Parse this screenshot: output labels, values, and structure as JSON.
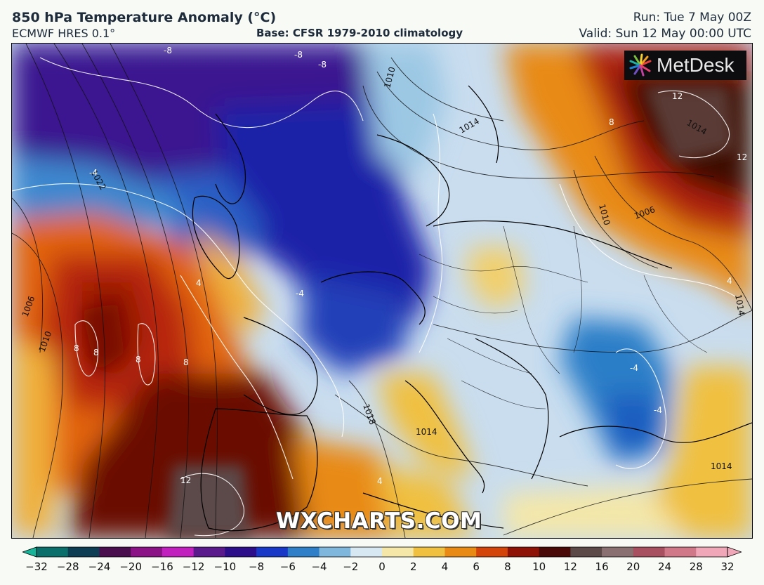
{
  "header": {
    "title": "850 hPa Temperature Anomaly (°C)",
    "model": "ECMWF HRES 0.1°",
    "base": "Base: CFSR 1979-2010 climatology",
    "run": "Run: Tue 7 May 00Z",
    "valid": "Valid: Sun 12 May 00:00 UTC"
  },
  "branding": {
    "logo": "MetDesk",
    "watermark": "WXCHARTS.COM"
  },
  "colorbar": {
    "ticks": [
      "−32",
      "−28",
      "−24",
      "−20",
      "−16",
      "−12",
      "−10",
      "−8",
      "−6",
      "−4",
      "−2",
      "0",
      "2",
      "4",
      "6",
      "8",
      "10",
      "12",
      "16",
      "20",
      "24",
      "28",
      "32"
    ],
    "colors": [
      "#16b59a",
      "#0a6f6a",
      "#0d3d52",
      "#4a0d4e",
      "#8a1286",
      "#c21fbf",
      "#5a1a8c",
      "#2c0e8a",
      "#1838c8",
      "#2f7ec8",
      "#7fb6dc",
      "#d8e8f2",
      "#f4e7a8",
      "#f0c040",
      "#e88a14",
      "#d3440a",
      "#8e1205",
      "#4a0a08",
      "#5c4a48",
      "#8a7070",
      "#a85060",
      "#d07888",
      "#f0a8b8"
    ]
  },
  "map": {
    "isobar_labels": [
      "1010",
      "1014",
      "1014",
      "1018",
      "1014",
      "1014",
      "1022",
      "1006",
      "1010",
      "1010",
      "1006",
      "1014"
    ],
    "anomaly_labels": [
      "-8",
      "-8",
      "-8",
      "-4",
      "-4",
      "4",
      "8",
      "8",
      "8",
      "8",
      "12",
      "12",
      "-4",
      "-4",
      "4",
      "12",
      "8",
      "4"
    ]
  }
}
